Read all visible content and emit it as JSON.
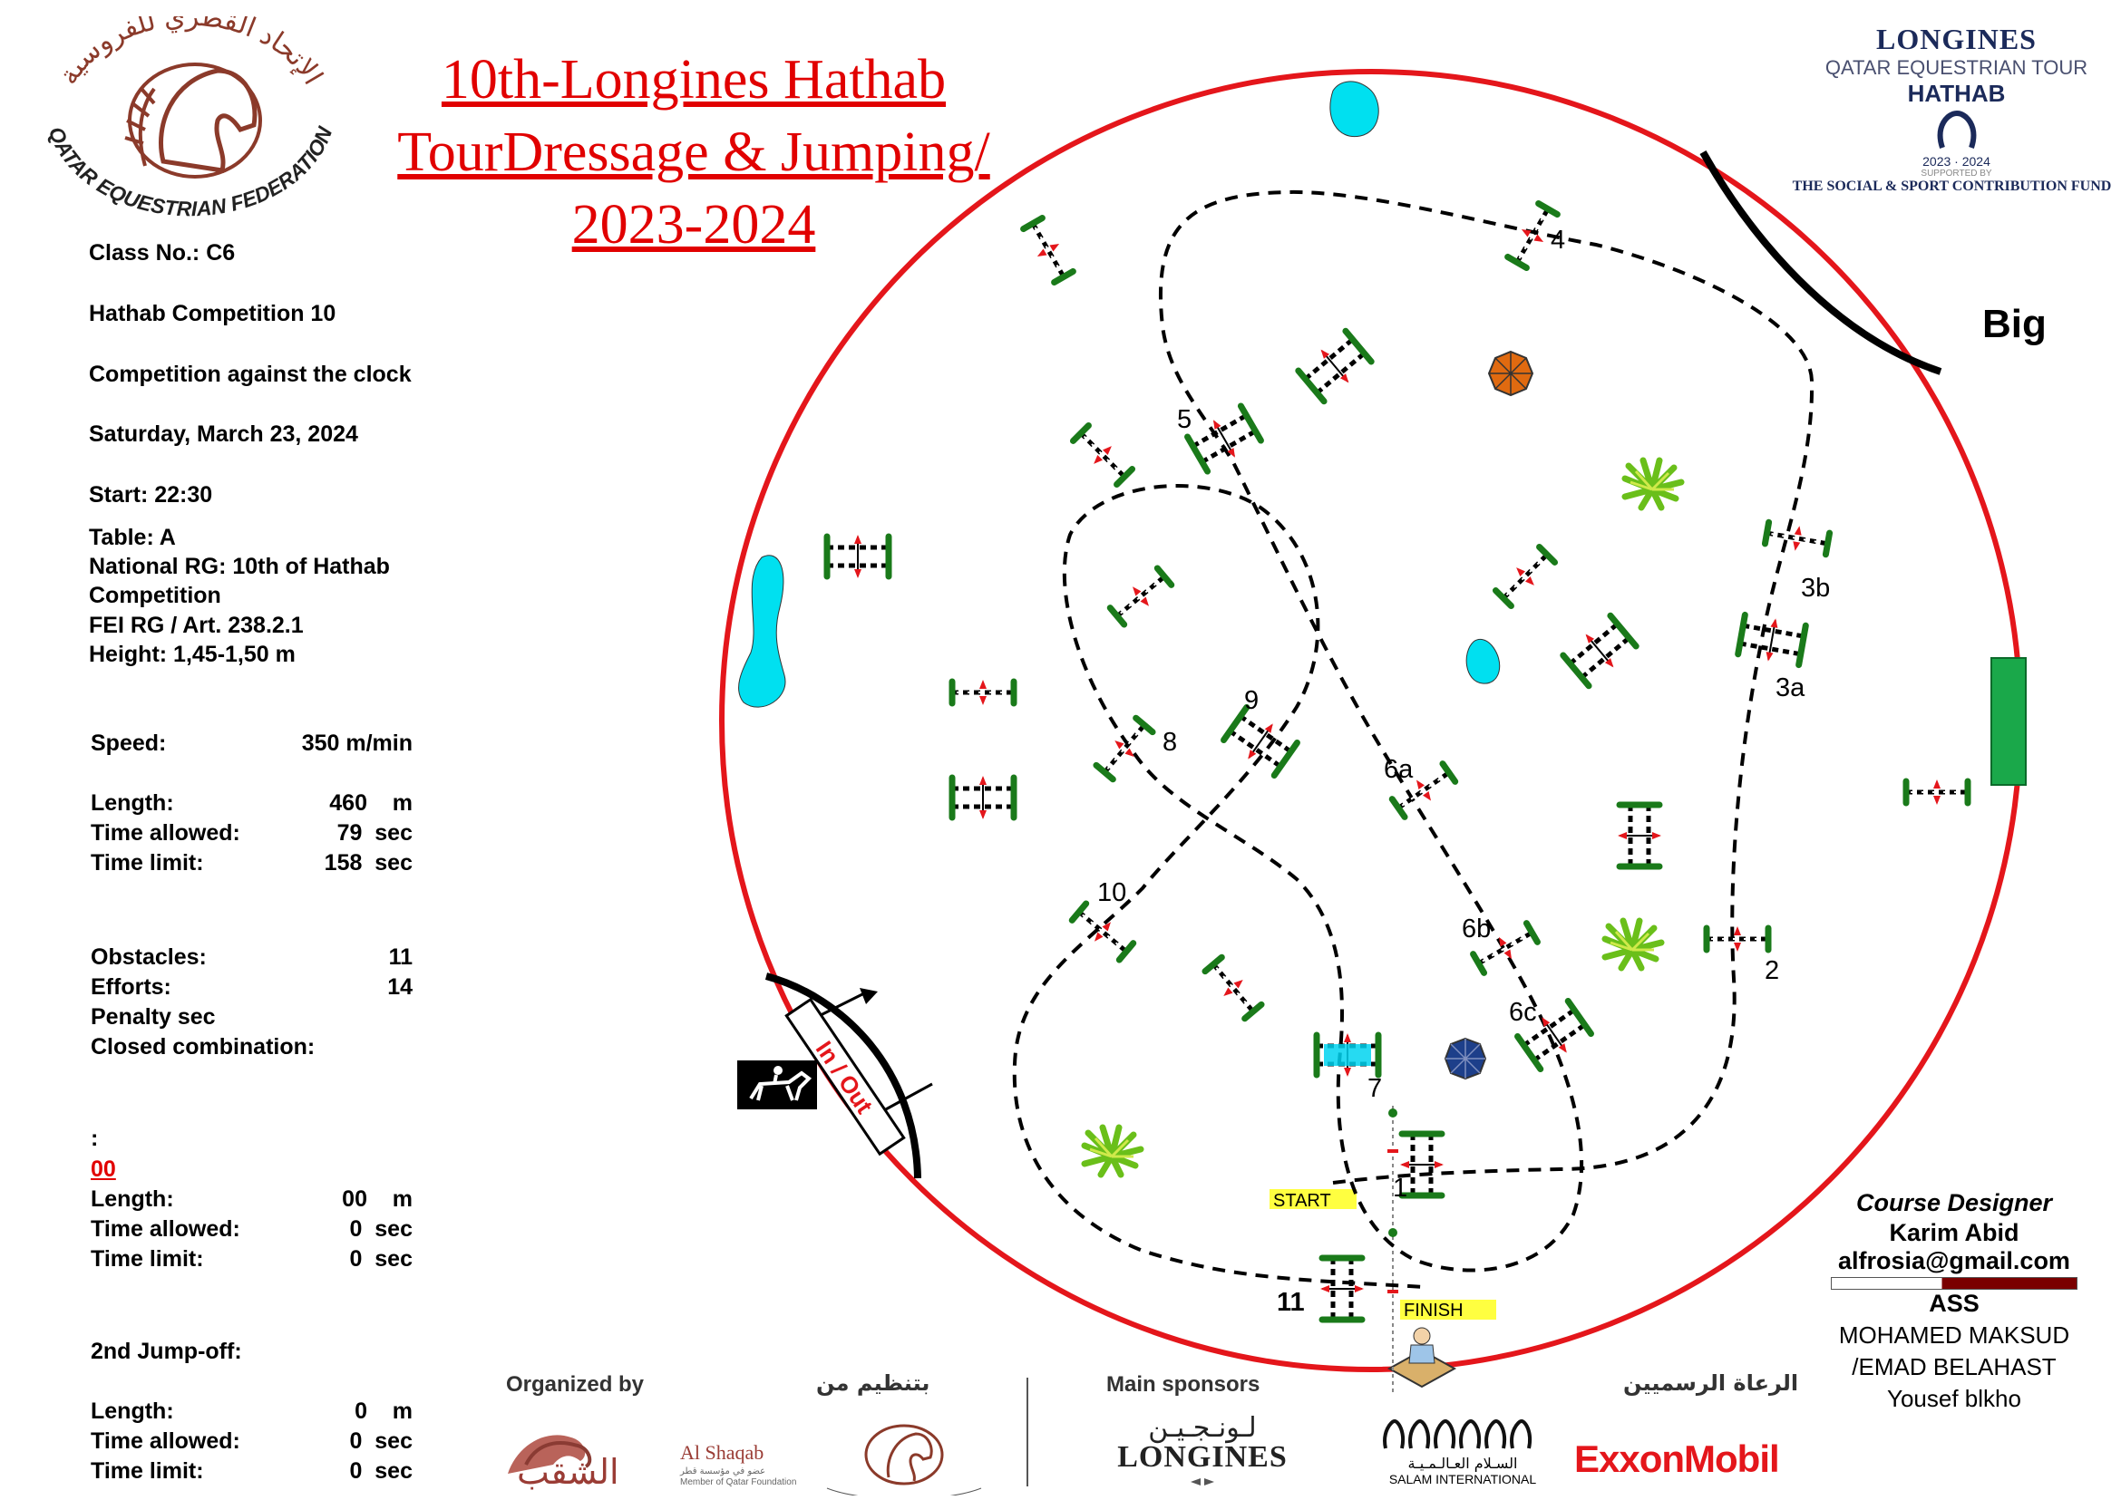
{
  "title": {
    "line1": "10th-Longines Hathab",
    "line2": "TourDressage & Jumping/",
    "line3": "2023-2024"
  },
  "federation_logo": {
    "arabic": "الإتحاد القطري للفروسية",
    "english": "QATAR EQUESTRIAN FEDERATION"
  },
  "tour_logo": {
    "line1": "LONGINES",
    "line2": "QATAR EQUESTRIAN TOUR",
    "line3": "HATHAB",
    "years": "2023 · 2024",
    "supported": "SUPPORTED BY",
    "fund": "THE SOCIAL & SPORT CONTRIBUTION FUND"
  },
  "class_info": {
    "class_no": "Class No.: C6",
    "competition": "Hathab Competition 10",
    "type": "Competition against the clock",
    "date": "Saturday, March 23, 2024",
    "start": "Start: 22:30",
    "table": "Table: A",
    "national_rg_1": "National RG: 10th of Hathab",
    "national_rg_2": "Competition",
    "fei_rg": "FEI RG / Art. 238.2.1",
    "height": "Height: 1,45-1,50  m"
  },
  "round": {
    "speed_label": "Speed:",
    "speed_value": "350  m/min",
    "length_label": "Length:",
    "length_value": "460    m",
    "time_allowed_label": "Time allowed:",
    "time_allowed_value": "79  sec",
    "time_limit_label": "Time limit:",
    "time_limit_value": "158  sec",
    "obstacles_label": "Obstacles:",
    "obstacles_value": "11",
    "efforts_label": "Efforts:",
    "efforts_value": "14",
    "penalty_label": "Penalty sec",
    "closed_label": "Closed combination:"
  },
  "jumpoff1": {
    "colon": ":",
    "heading": "00",
    "length_label": "Length:",
    "length_value": "00    m",
    "time_allowed_label": "Time allowed:",
    "time_allowed_value": "0  sec",
    "time_limit_label": "Time limit:",
    "time_limit_value": "0  sec"
  },
  "jumpoff2": {
    "heading": "2nd Jump-off:",
    "length_label": "Length:",
    "length_value": "0    m",
    "time_allowed_label": "Time allowed:",
    "time_allowed_value": "0  sec",
    "time_limit_label": "Time limit:",
    "time_limit_value": "0  sec"
  },
  "course_designer": {
    "heading": "Course Designer",
    "name": "Karim Abid",
    "email": "alfrosia@gmail.com",
    "ass": "ASS",
    "assistant1": "MOHAMED MAKSUD",
    "assistant2": "/EMAD BELAHAST",
    "assistant3": "Yousef blkho"
  },
  "arena": {
    "big_label": "Big",
    "in_out": "In / Out",
    "start_label": "START",
    "finish_label": "FINISH",
    "obstacle_labels": [
      "1",
      "2",
      "3a",
      "3b",
      "4",
      "5",
      "6a",
      "6b",
      "6c",
      "7",
      "8",
      "9",
      "10",
      "11"
    ]
  },
  "footer": {
    "organized_by": "Organized by",
    "organized_ar": "بتنظيم من",
    "main_sponsors": "Main sponsors",
    "sponsors_ar": "الرعاة الرسميين",
    "alshaqab": "Al Shaqab",
    "alshaqab_ar": "الشقب",
    "alshaqab_sub": "عضو في مؤسسة قطر",
    "alshaqab_member": "Member of Qatar Foundation",
    "longines_ar": "لـونـجـيـن",
    "longines": "LONGINES",
    "salam_ar": "السـلام العـالـمـيـة",
    "salam": "SALAM INTERNATIONAL",
    "exxon": "ExxonMobil"
  },
  "colors": {
    "title_red": "#e10000",
    "arena_red": "#e4161b",
    "jump_green": "#1a7a1a",
    "water_cyan": "#00e0f0"
  }
}
